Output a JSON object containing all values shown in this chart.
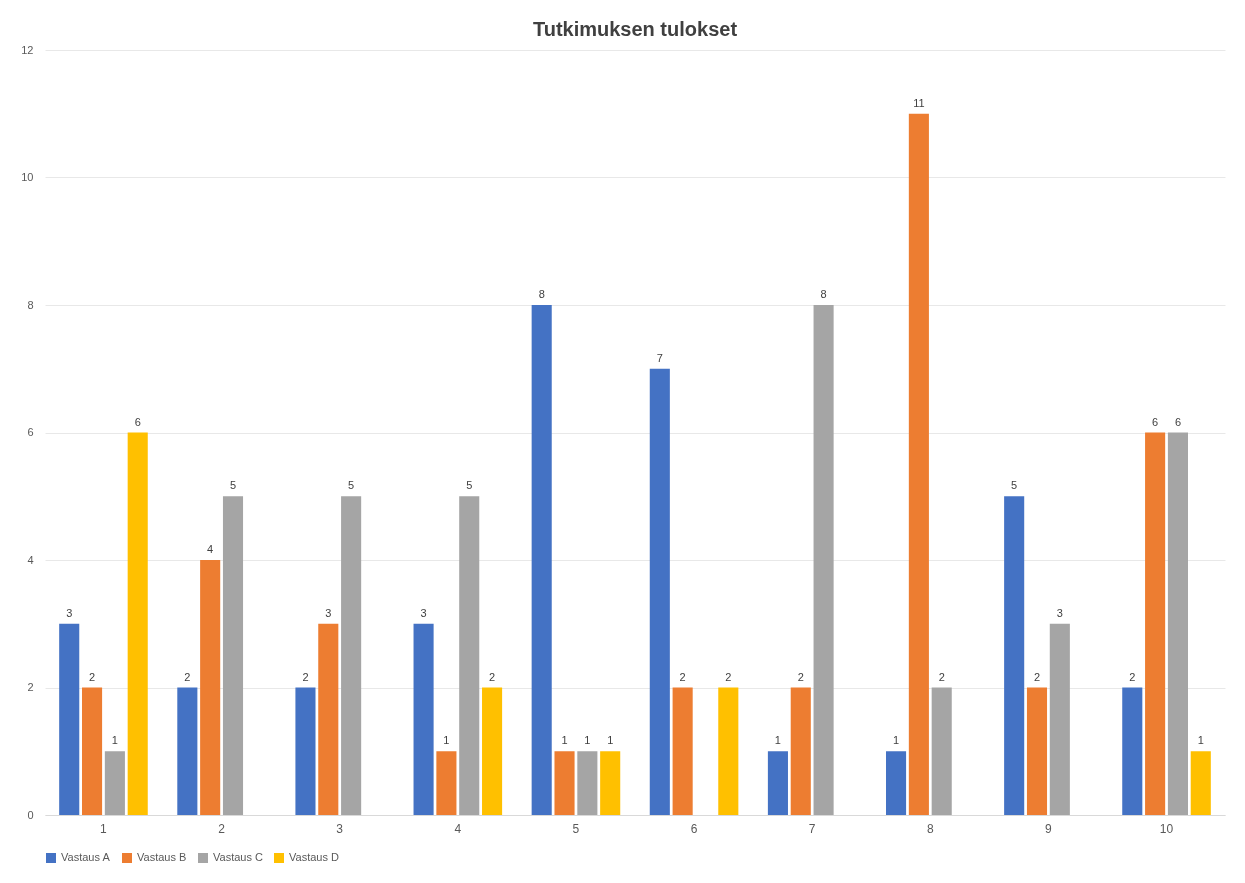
{
  "chart_data": {
    "type": "bar",
    "title": "Tutkimuksen tulokset",
    "categories": [
      "1",
      "2",
      "3",
      "4",
      "5",
      "6",
      "7",
      "8",
      "9",
      "10"
    ],
    "series": [
      {
        "name": "Vastaus A",
        "color": "#4472c4",
        "values": [
          3,
          2,
          2,
          3,
          8,
          7,
          1,
          1,
          5,
          2
        ]
      },
      {
        "name": "Vastaus B",
        "color": "#ed7d31",
        "values": [
          2,
          4,
          3,
          1,
          1,
          2,
          2,
          11,
          2,
          6
        ]
      },
      {
        "name": "Vastaus C",
        "color": "#a5a5a5",
        "values": [
          1,
          5,
          5,
          5,
          1,
          null,
          8,
          2,
          3,
          6
        ]
      },
      {
        "name": "Vastaus D",
        "color": "#ffc000",
        "values": [
          6,
          null,
          null,
          2,
          1,
          2,
          null,
          null,
          null,
          1
        ]
      }
    ],
    "ylim": [
      0,
      12
    ],
    "yticks": [
      0,
      2,
      4,
      6,
      8,
      10,
      12
    ],
    "grid": "y",
    "legend": "bottom",
    "data_labels": true
  }
}
